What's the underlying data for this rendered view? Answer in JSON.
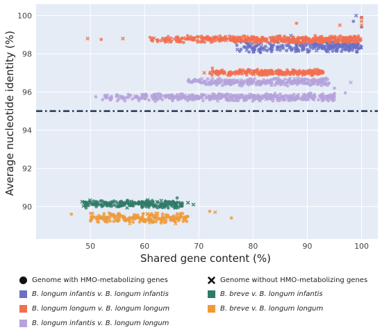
{
  "chart_data": {
    "type": "scatter",
    "xlabel": "Shared gene content (%)",
    "ylabel": "Average nucleotide identity (%)",
    "xlim": [
      40,
      103
    ],
    "ylim": [
      88.3,
      100.6
    ],
    "xticks": [
      "50",
      "60",
      "70",
      "80",
      "90",
      "100"
    ],
    "yticks": [
      "90",
      "92",
      "94",
      "96",
      "98",
      "100"
    ],
    "threshold": {
      "y": 95,
      "style": "dash-dot",
      "color": "#1f3350"
    },
    "grid": true,
    "background": "#e5ecf6",
    "legend_placement": "bottom",
    "marker_legend": [
      {
        "name": "Genome with HMO-metabolizing genes",
        "marker": "circle"
      },
      {
        "name": "Genome without HMO-metabolizing genes",
        "marker": "x"
      }
    ],
    "series": [
      {
        "name": "B. longum infantis v. B. longum infantis",
        "color": "#6a6fc4",
        "clusters": [
          {
            "x": [
              77,
              100
            ],
            "y": [
              98.05,
              98.7
            ]
          }
        ],
        "points": [
          [
            100,
            99.9
          ],
          [
            99,
            100.0
          ],
          [
            98.5,
            99.7
          ],
          [
            100,
            99.4
          ],
          [
            87,
            98.95
          ]
        ]
      },
      {
        "name": "B. longum longum v. B. longum longum",
        "color": "#f36e4f",
        "clusters": [
          {
            "x": [
              61,
              100
            ],
            "y": [
              98.55,
              98.95
            ]
          },
          {
            "x": [
              72,
              93
            ],
            "y": [
              96.85,
              97.2
            ]
          }
        ],
        "points": [
          [
            49.5,
            98.8
          ],
          [
            52,
            98.75
          ],
          [
            56,
            98.8
          ],
          [
            88,
            99.6
          ],
          [
            96,
            99.5
          ],
          [
            100,
            99.9
          ],
          [
            100,
            99.7
          ],
          [
            100,
            99.5
          ],
          [
            72.5,
            97.25
          ],
          [
            71,
            97.0
          ]
        ]
      },
      {
        "name": "B. longum infantis v. B. longum longum",
        "color": "#b5a3db",
        "clusters": [
          {
            "x": [
              52,
              95
            ],
            "y": [
              95.5,
              95.95
            ]
          },
          {
            "x": [
              68,
              94
            ],
            "y": [
              96.3,
              96.75
            ]
          }
        ],
        "points": [
          [
            51,
            95.75
          ],
          [
            53,
            95.7
          ],
          [
            69,
            96.6
          ],
          [
            95,
            96.2
          ],
          [
            97,
            95.95
          ],
          [
            98,
            96.5
          ]
        ]
      },
      {
        "name": "B. breve v. B. longum infantis",
        "color": "#2f7a69",
        "clusters": [
          {
            "x": [
              48,
              67
            ],
            "y": [
              89.9,
              90.35
            ]
          }
        ],
        "points": [
          [
            66,
            90.45
          ],
          [
            68,
            90.2
          ],
          [
            69,
            90.1
          ],
          [
            48.5,
            90.25
          ]
        ]
      },
      {
        "name": "B. breve v. B. longum longum",
        "color": "#ef9a3a",
        "clusters": [
          {
            "x": [
              50,
              68
            ],
            "y": [
              89.1,
              89.7
            ]
          }
        ],
        "points": [
          [
            46.5,
            89.6
          ],
          [
            72,
            89.75
          ],
          [
            73,
            89.7
          ],
          [
            76,
            89.4
          ]
        ]
      }
    ]
  }
}
